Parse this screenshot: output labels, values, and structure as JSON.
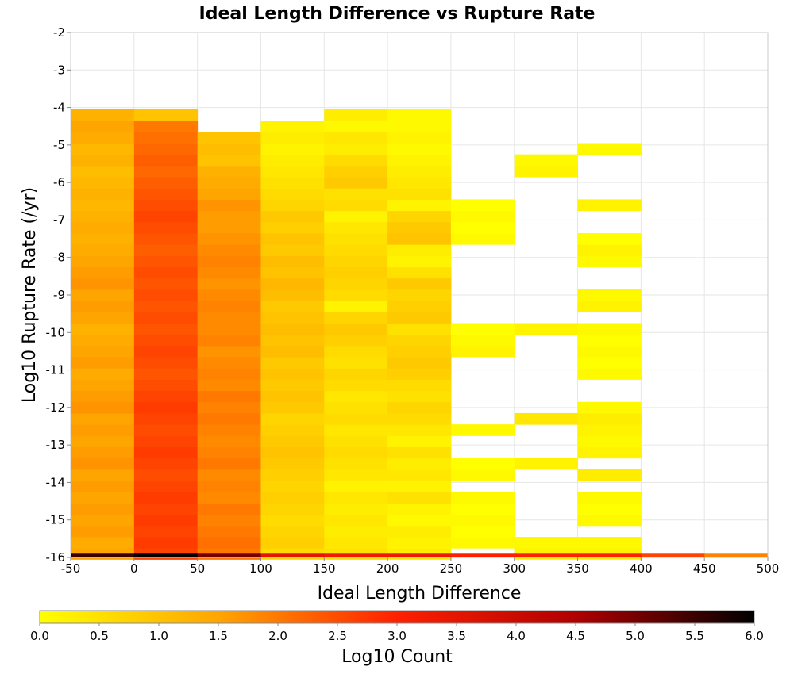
{
  "chart_data": {
    "type": "heatmap",
    "title": "Ideal Length Difference vs Rupture Rate",
    "xlabel": "Ideal Length Difference",
    "ylabel": "Log10 Rupture Rate (/yr)",
    "xlim": [
      -50,
      500
    ],
    "ylim": [
      -16,
      -2
    ],
    "x_ticks": [
      "-50",
      "0",
      "50",
      "100",
      "150",
      "200",
      "250",
      "300",
      "350",
      "400",
      "450",
      "500"
    ],
    "y_ticks": [
      "-2",
      "-3",
      "-4",
      "-5",
      "-6",
      "-7",
      "-8",
      "-9",
      "-10",
      "-11",
      "-12",
      "-13",
      "-14",
      "-15",
      "-16"
    ],
    "grid": true,
    "x_bin_width": 50,
    "y_bin_height": 0.3,
    "colorbar": {
      "label": "Log10 Count",
      "min": 0.0,
      "max": 6.0,
      "ticks": [
        "0.0",
        "0.5",
        "1.0",
        "1.5",
        "2.0",
        "2.5",
        "3.0",
        "3.5",
        "4.0",
        "4.5",
        "5.0",
        "5.5",
        "6.0"
      ],
      "colors": [
        "#ffff00",
        "#ffa500",
        "#ff2000",
        "#b00000",
        "#000000"
      ]
    },
    "columns": [
      {
        "x": -25,
        "y_start": -15.9,
        "values": [
          1.5,
          1.4,
          1.6,
          1.5,
          1.6,
          1.5,
          1.6,
          1.5,
          1.7,
          1.6,
          1.5,
          1.6,
          1.5,
          1.7,
          1.6,
          1.5,
          1.4,
          1.6,
          1.5,
          1.4,
          1.3,
          1.5,
          1.6,
          1.5,
          1.7,
          1.6,
          1.5,
          1.4,
          1.3,
          1.4,
          1.3,
          1.2,
          1.3,
          1.2,
          1.1,
          1.3,
          1.2,
          1.4,
          1.5,
          1.3
        ]
      },
      {
        "x": 25,
        "y_start": -15.9,
        "values": [
          2.6,
          2.7,
          2.6,
          2.7,
          2.6,
          2.7,
          2.6,
          2.5,
          2.6,
          2.7,
          2.6,
          2.5,
          2.6,
          2.7,
          2.6,
          2.5,
          2.4,
          2.5,
          2.6,
          2.5,
          2.4,
          2.5,
          2.4,
          2.5,
          2.4,
          2.5,
          2.4,
          2.3,
          2.4,
          2.5,
          2.6,
          2.5,
          2.4,
          2.3,
          2.2,
          2.3,
          2.2,
          2.1,
          2.0,
          1.0
        ]
      },
      {
        "x": 75,
        "y_start": -15.9,
        "values": [
          2.0,
          2.1,
          2.0,
          1.9,
          2.0,
          1.8,
          1.9,
          1.8,
          2.0,
          1.9,
          1.8,
          1.9,
          2.0,
          1.9,
          2.0,
          1.8,
          1.9,
          1.8,
          1.7,
          1.9,
          1.8,
          1.8,
          1.9,
          1.8,
          1.7,
          1.8,
          1.9,
          1.8,
          1.7,
          1.6,
          1.6,
          1.7,
          1.5,
          1.4,
          1.3,
          1.0,
          1.1,
          1.0
        ]
      },
      {
        "x": 125,
        "y_start": -15.9,
        "values": [
          0.6,
          0.8,
          0.7,
          0.6,
          0.7,
          0.8,
          0.7,
          0.8,
          0.9,
          1.0,
          0.9,
          0.8,
          0.7,
          0.9,
          1.0,
          0.9,
          1.0,
          0.9,
          1.1,
          1.0,
          1.1,
          1.0,
          0.9,
          1.1,
          1.2,
          1.0,
          1.1,
          0.9,
          1.0,
          0.8,
          0.9,
          0.7,
          0.6,
          0.5,
          0.4,
          0.3,
          0.2,
          0.3,
          0.2
        ]
      },
      {
        "x": 175,
        "y_start": -15.9,
        "values": [
          0.5,
          0.4,
          0.3,
          0.4,
          0.3,
          0.4,
          0.2,
          0.4,
          0.5,
          0.6,
          0.5,
          0.4,
          0.6,
          0.5,
          0.4,
          0.6,
          0.7,
          0.5,
          0.6,
          0.8,
          0.9,
          0.7,
          0.2,
          0.6,
          0.7,
          0.8,
          0.7,
          0.6,
          0.5,
          0.4,
          0.2,
          0.6,
          0.5,
          0.9,
          0.8,
          0.6,
          0.3,
          0.4,
          0.1,
          0.3
        ]
      },
      {
        "x": 225,
        "y_start": -15.9,
        "values": [
          0.3,
          0.2,
          0.3,
          0.1,
          0.2,
          0.5,
          0.2,
          0.4,
          0.3,
          0.5,
          0.2,
          0.4,
          0.6,
          0.7,
          0.5,
          0.6,
          0.8,
          0.9,
          0.8,
          0.7,
          0.5,
          0.9,
          0.8,
          0.7,
          0.9,
          0.5,
          0.2,
          0.3,
          1.0,
          0.9,
          0.7,
          0.2,
          0.5,
          0.4,
          0.3,
          0.2,
          0.1,
          0.2,
          0.1,
          0.1
        ]
      },
      {
        "x": 275,
        "y_start": -15.9,
        "values": [
          null,
          0.1,
          0.0,
          0.1,
          0.0,
          0.1,
          null,
          0.1,
          0.0,
          null,
          null,
          0.1,
          null,
          null,
          null,
          null,
          null,
          null,
          0.2,
          0.1,
          0.0,
          null,
          null,
          null,
          null,
          null,
          null,
          null,
          0.1,
          0.0,
          0.1,
          0.0
        ]
      },
      {
        "x": 325,
        "y_start": -15.9,
        "values": [
          0.2,
          0.1,
          null,
          null,
          null,
          null,
          null,
          null,
          0.2,
          null,
          null,
          null,
          0.4,
          null,
          null,
          null,
          null,
          null,
          null,
          null,
          0.2,
          null,
          null,
          null,
          null,
          null,
          null,
          null,
          null,
          null,
          null,
          null,
          null,
          null,
          0.2,
          0.1
        ]
      },
      {
        "x": 375,
        "y_start": -15.9,
        "values": [
          0.2,
          0.1,
          null,
          0.1,
          0.0,
          0.1,
          null,
          0.3,
          null,
          0.2,
          0.1,
          0.2,
          0.3,
          0.1,
          null,
          null,
          0.1,
          0.0,
          0.1,
          0.0,
          0.1,
          null,
          0.2,
          0.1,
          null,
          null,
          0.1,
          0.2,
          0.0,
          null,
          null,
          0.2,
          null,
          null,
          null,
          null,
          0.1
        ]
      },
      {
        "x": 425,
        "y_start": -15.9,
        "values": []
      },
      {
        "x": 475,
        "y_start": -15.9,
        "values": []
      }
    ],
    "bottom_row": {
      "y": -15.95,
      "height": 0.1,
      "values": [
        5.5,
        6.0,
        5.0,
        3.5,
        3.3,
        3.3,
        3.0,
        3.0,
        3.0,
        2.6,
        1.9
      ]
    }
  }
}
